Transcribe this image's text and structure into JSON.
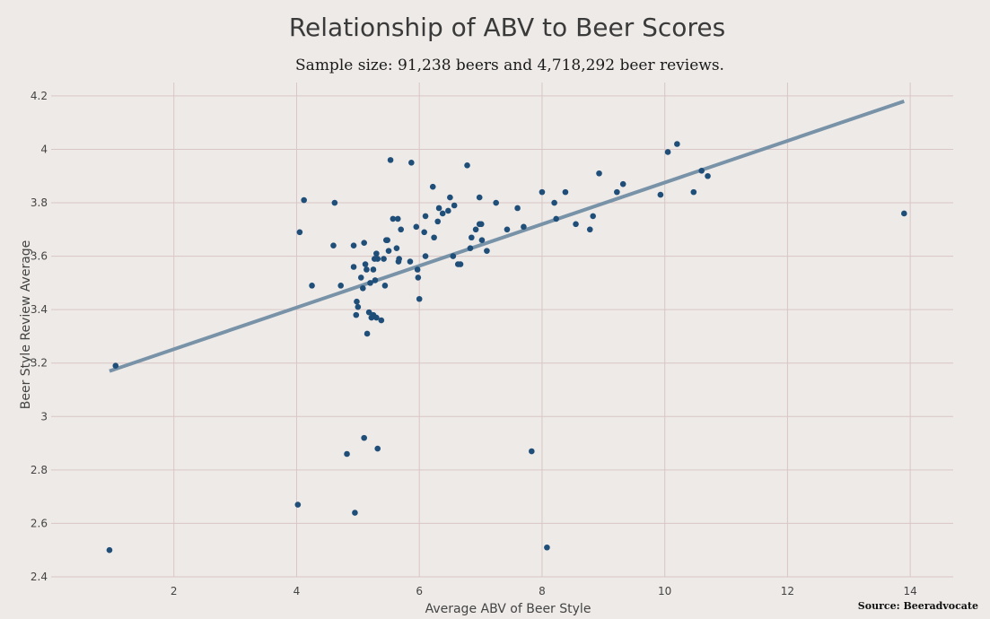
{
  "chart_data": {
    "type": "scatter",
    "title": "Relationship of ABV to Beer Scores",
    "subtitle": "Sample size: 91,238 beers and 4,718,292 beer reviews.",
    "xlabel": "Average ABV of Beer Style",
    "ylabel": "Beer Style Review Average",
    "source": "Source: Beeradvocate",
    "xlim": [
      0.0,
      14.7
    ],
    "ylim": [
      2.4,
      4.25
    ],
    "x_ticks": [
      2,
      4,
      6,
      8,
      10,
      12,
      14
    ],
    "y_ticks": [
      2.4,
      2.6,
      2.8,
      3.0,
      3.2,
      3.4,
      3.6,
      3.8,
      4.0,
      4.2
    ],
    "y_tick_labels": [
      "2.4",
      "2.6",
      "2.8",
      "3",
      "3.2",
      "3.4",
      "3.6",
      "3.8",
      "4",
      "4.2"
    ],
    "grid": true,
    "colors": {
      "points": "#1f4e79",
      "trendline": "#7892a8",
      "grid": "#d9c6c6",
      "background": "#eeeae7"
    },
    "trendline": {
      "x": [
        0.95,
        13.9
      ],
      "y": [
        3.17,
        4.18
      ]
    },
    "points": [
      [
        1.05,
        3.19
      ],
      [
        0.95,
        2.5
      ],
      [
        4.05,
        3.69
      ],
      [
        4.12,
        3.81
      ],
      [
        4.02,
        2.67
      ],
      [
        4.25,
        3.49
      ],
      [
        4.6,
        3.64
      ],
      [
        4.62,
        3.8
      ],
      [
        4.72,
        3.49
      ],
      [
        4.82,
        2.86
      ],
      [
        4.93,
        3.64
      ],
      [
        4.93,
        3.56
      ],
      [
        4.95,
        2.64
      ],
      [
        4.97,
        3.38
      ],
      [
        4.98,
        3.43
      ],
      [
        5.0,
        3.41
      ],
      [
        5.05,
        3.52
      ],
      [
        5.08,
        3.48
      ],
      [
        5.1,
        3.65
      ],
      [
        5.1,
        2.92
      ],
      [
        5.12,
        3.57
      ],
      [
        5.14,
        3.55
      ],
      [
        5.15,
        3.31
      ],
      [
        5.18,
        3.39
      ],
      [
        5.2,
        3.5
      ],
      [
        5.22,
        3.37
      ],
      [
        5.25,
        3.55
      ],
      [
        5.25,
        3.38
      ],
      [
        5.27,
        3.59
      ],
      [
        5.28,
        3.51
      ],
      [
        5.3,
        3.37
      ],
      [
        5.3,
        3.61
      ],
      [
        5.32,
        3.59
      ],
      [
        5.32,
        2.88
      ],
      [
        5.38,
        3.36
      ],
      [
        5.42,
        3.59
      ],
      [
        5.44,
        3.49
      ],
      [
        5.46,
        3.66
      ],
      [
        5.48,
        3.66
      ],
      [
        5.5,
        3.62
      ],
      [
        5.53,
        3.96
      ],
      [
        5.57,
        3.74
      ],
      [
        5.63,
        3.63
      ],
      [
        5.65,
        3.74
      ],
      [
        5.66,
        3.58
      ],
      [
        5.67,
        3.59
      ],
      [
        5.7,
        3.7
      ],
      [
        5.85,
        3.58
      ],
      [
        5.87,
        3.95
      ],
      [
        5.95,
        3.71
      ],
      [
        5.97,
        3.55
      ],
      [
        5.98,
        3.52
      ],
      [
        6.0,
        3.44
      ],
      [
        6.08,
        3.69
      ],
      [
        6.1,
        3.6
      ],
      [
        6.1,
        3.75
      ],
      [
        6.22,
        3.86
      ],
      [
        6.24,
        3.67
      ],
      [
        6.3,
        3.73
      ],
      [
        6.32,
        3.78
      ],
      [
        6.38,
        3.76
      ],
      [
        6.47,
        3.77
      ],
      [
        6.5,
        3.82
      ],
      [
        6.55,
        3.6
      ],
      [
        6.57,
        3.79
      ],
      [
        6.63,
        3.57
      ],
      [
        6.67,
        3.57
      ],
      [
        6.78,
        3.94
      ],
      [
        6.83,
        3.63
      ],
      [
        6.85,
        3.67
      ],
      [
        6.92,
        3.7
      ],
      [
        6.98,
        3.82
      ],
      [
        6.98,
        3.72
      ],
      [
        7.01,
        3.72
      ],
      [
        7.02,
        3.66
      ],
      [
        7.1,
        3.62
      ],
      [
        7.25,
        3.8
      ],
      [
        7.43,
        3.7
      ],
      [
        7.6,
        3.78
      ],
      [
        7.7,
        3.71
      ],
      [
        7.83,
        2.87
      ],
      [
        8.0,
        3.84
      ],
      [
        8.08,
        2.51
      ],
      [
        8.2,
        3.8
      ],
      [
        8.23,
        3.74
      ],
      [
        8.38,
        3.84
      ],
      [
        8.55,
        3.72
      ],
      [
        8.78,
        3.7
      ],
      [
        8.83,
        3.75
      ],
      [
        8.93,
        3.91
      ],
      [
        9.22,
        3.84
      ],
      [
        9.32,
        3.87
      ],
      [
        9.93,
        3.83
      ],
      [
        10.05,
        3.99
      ],
      [
        10.2,
        4.02
      ],
      [
        10.47,
        3.84
      ],
      [
        10.6,
        3.92
      ],
      [
        10.7,
        3.9
      ],
      [
        13.9,
        3.76
      ]
    ]
  }
}
